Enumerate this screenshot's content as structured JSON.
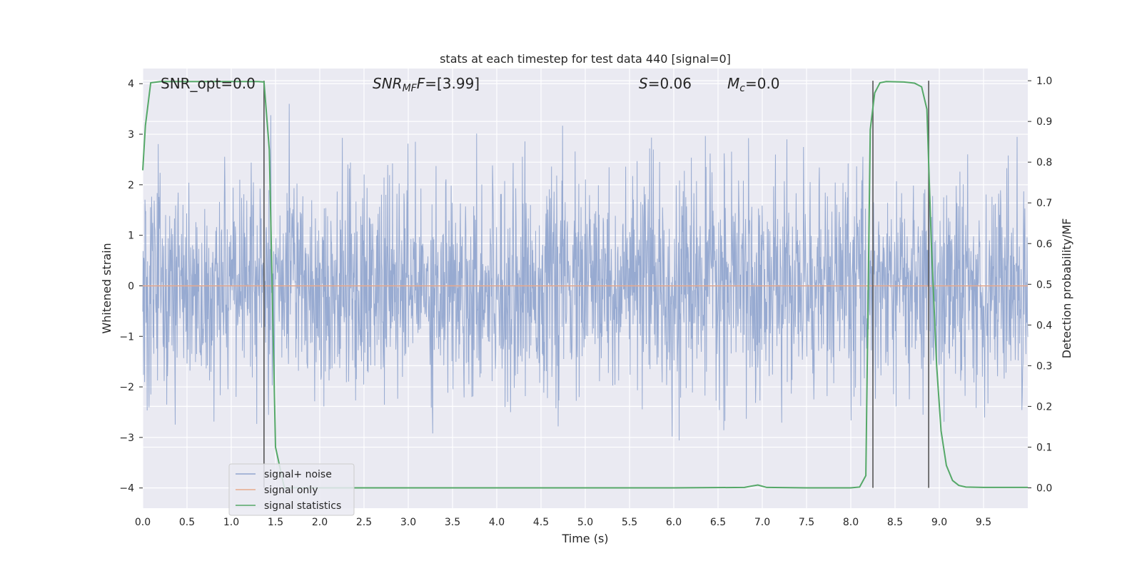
{
  "chart_data": {
    "type": "line",
    "title": "stats at each timestep for test data 440 [signal=0]",
    "xlabel": "Time (s)",
    "ylabel": "Whitened strain",
    "ylabel_right": "Detection probability/MF",
    "xlim": [
      0.0,
      10.0
    ],
    "ylim_left": [
      -4.4,
      4.3
    ],
    "ylim_right": [
      -0.05,
      1.03
    ],
    "xticks": [
      "0.0",
      "0.5",
      "1.0",
      "1.5",
      "2.0",
      "2.5",
      "3.0",
      "3.5",
      "4.0",
      "4.5",
      "5.0",
      "5.5",
      "6.0",
      "6.5",
      "7.0",
      "7.5",
      "8.0",
      "8.5",
      "9.0",
      "9.5"
    ],
    "yticks_left": [
      "−4",
      "−3",
      "−2",
      "−1",
      "0",
      "1",
      "2",
      "3",
      "4"
    ],
    "yticks_right": [
      "0.0",
      "0.1",
      "0.2",
      "0.3",
      "0.4",
      "0.5",
      "0.6",
      "0.7",
      "0.8",
      "0.9",
      "1.0"
    ],
    "grid": true,
    "legend_position": "lower-left",
    "annotations": {
      "snr_opt": "SNR_opt=0.0",
      "snr_mf_main": "SNR",
      "snr_mf_sub": "MF",
      "snr_mf_value": "=[3.99]",
      "s_main": "S",
      "s_value": "=0.06",
      "mc_main": "M",
      "mc_sub": "c",
      "mc_value": "=0.0"
    },
    "vertical_lines_x": [
      1.37,
      8.25,
      8.88
    ],
    "series": [
      {
        "name": "signal+ noise",
        "axis": "left",
        "color": "#92a6cf",
        "description_envelope_typical": 1.9,
        "note": "white noise, approx std 1.0"
      },
      {
        "name": "signal only",
        "axis": "left",
        "color": "#e8a98c",
        "values_constant": 0.0
      },
      {
        "name": "signal statistics",
        "axis": "right",
        "color": "#55a868",
        "x": [
          0.0,
          0.03,
          0.09,
          0.2,
          0.5,
          1.0,
          1.3,
          1.37,
          1.43,
          1.5,
          1.6,
          2.0,
          3.0,
          4.0,
          5.0,
          6.0,
          6.8,
          6.87,
          6.95,
          7.05,
          7.5,
          8.0,
          8.1,
          8.17,
          8.22,
          8.27,
          8.33,
          8.4,
          8.6,
          8.72,
          8.8,
          8.86,
          8.91,
          8.97,
          9.02,
          9.08,
          9.15,
          9.22,
          9.3,
          9.5,
          10.0
        ],
        "y": [
          0.78,
          0.89,
          0.995,
          0.998,
          0.998,
          0.998,
          0.998,
          0.997,
          0.83,
          0.1,
          0.0,
          0.0,
          0.0,
          0.0,
          0.0,
          0.0,
          0.001,
          0.004,
          0.007,
          0.001,
          0.0,
          0.0,
          0.002,
          0.03,
          0.88,
          0.97,
          0.995,
          0.998,
          0.997,
          0.994,
          0.985,
          0.93,
          0.6,
          0.3,
          0.14,
          0.055,
          0.018,
          0.006,
          0.002,
          0.001,
          0.001
        ]
      }
    ]
  }
}
